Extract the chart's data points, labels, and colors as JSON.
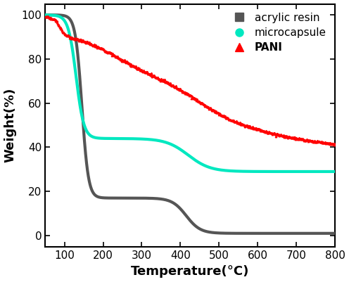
{
  "xlabel": "Temperature(°C)",
  "ylabel": "Weight(%)",
  "xlim": [
    50,
    800
  ],
  "ylim": [
    -5,
    105
  ],
  "xticks": [
    100,
    200,
    300,
    400,
    500,
    600,
    700,
    800
  ],
  "yticks": [
    0,
    20,
    40,
    60,
    80,
    100
  ],
  "acrylic_resin_color": "#555555",
  "microcapsule_color": "#00e8c0",
  "pani_color": "#ff0000",
  "legend_labels": [
    "acrylic resin",
    "microcapsule",
    "PANI"
  ],
  "linewidth": 3.0,
  "figsize": [
    4.96,
    4.01
  ],
  "dpi": 100,
  "background_color": "#ffffff"
}
